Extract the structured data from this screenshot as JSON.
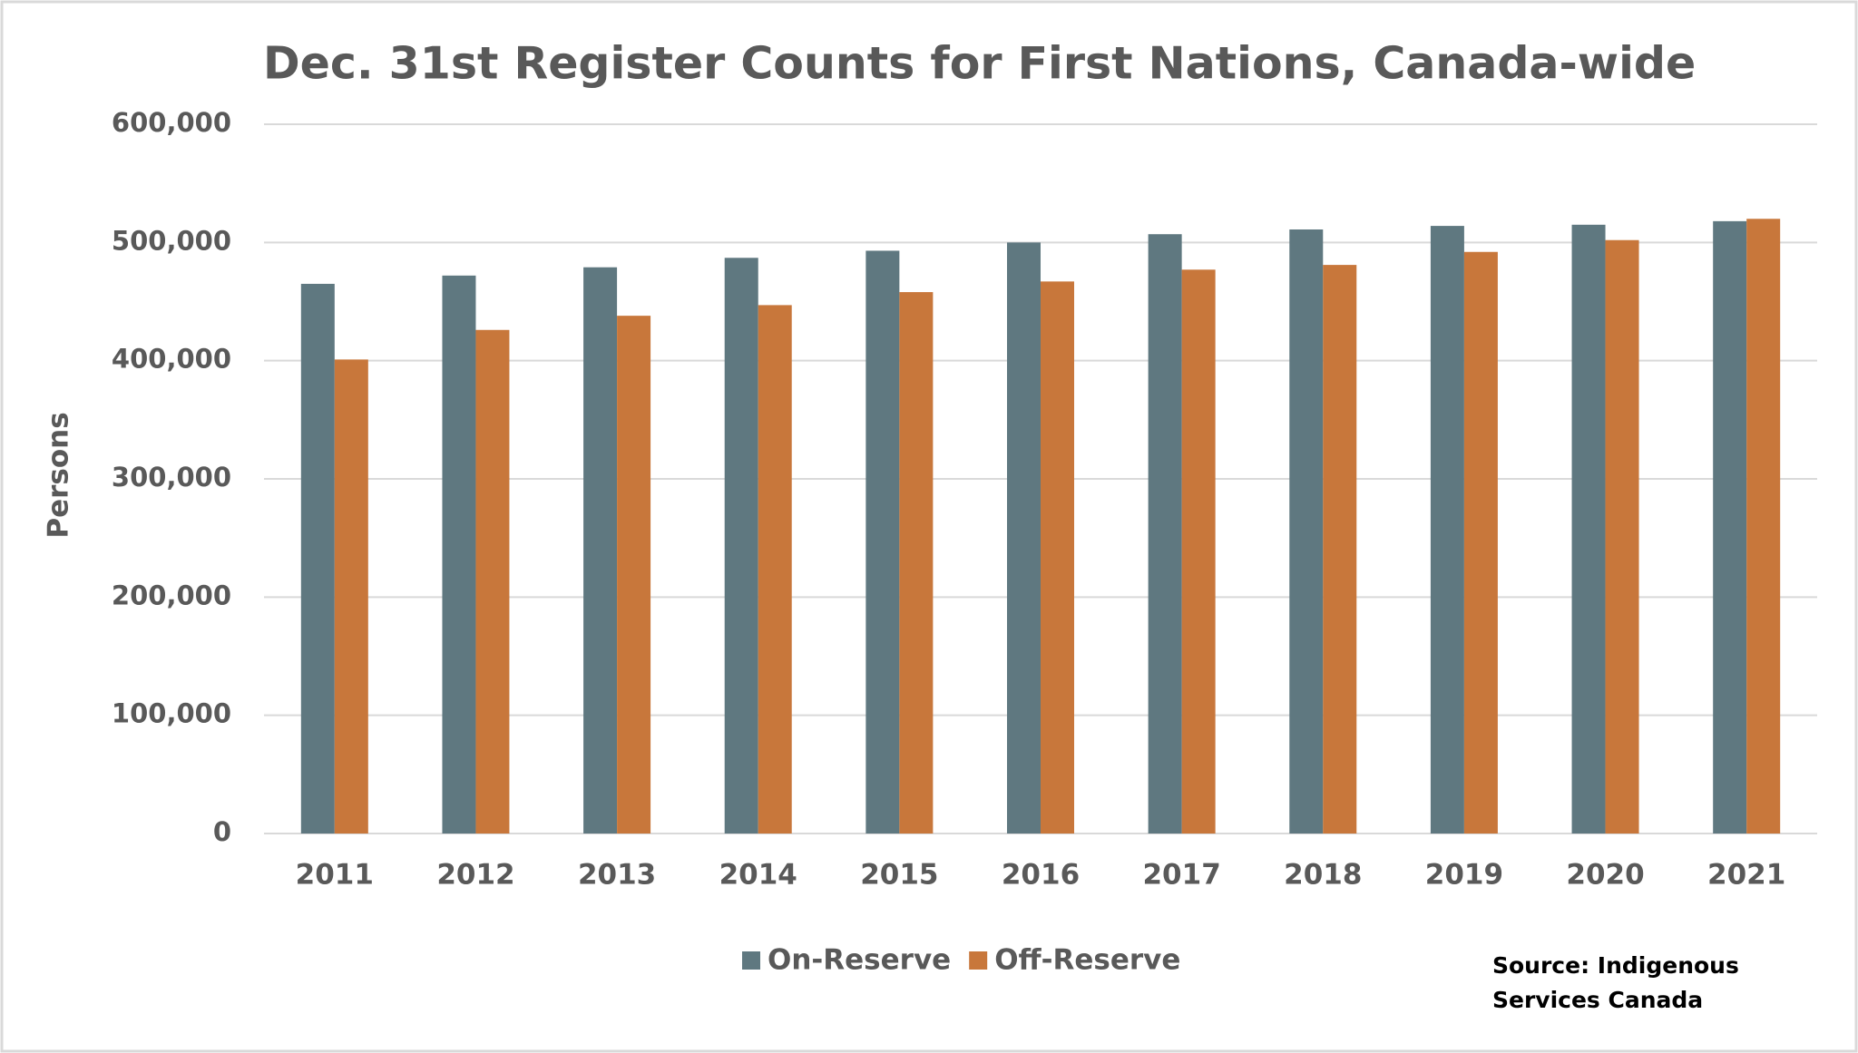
{
  "chart_data": {
    "type": "bar",
    "title": "Dec. 31st Register Counts for First Nations, Canada-wide",
    "y_label": "Persons",
    "source": "Source: Indigenous Services Canada",
    "categories": [
      "2011",
      "2012",
      "2013",
      "2014",
      "2015",
      "2016",
      "2017",
      "2018",
      "2019",
      "2020",
      "2021"
    ],
    "series": [
      {
        "name": "On-Reserve",
        "color": "#5f7880",
        "values": [
          465000,
          472000,
          479000,
          487000,
          493000,
          500000,
          507000,
          511000,
          514000,
          515000,
          518000
        ]
      },
      {
        "name": "Off-Reserve",
        "color": "#c8773b",
        "values": [
          401000,
          426000,
          438000,
          447000,
          458000,
          467000,
          477000,
          481000,
          492000,
          502000,
          520000
        ]
      }
    ],
    "ylim": [
      0,
      600000
    ],
    "yticks": [
      0,
      {
        "value": 100000,
        "label": "100,000"
      },
      {
        "value": 200000,
        "label": "200,000"
      },
      {
        "value": 300000,
        "label": "300,000"
      },
      {
        "value": 400000,
        "label": "400,000"
      },
      {
        "value": 500000,
        "label": "500,000"
      },
      {
        "value": 600000,
        "label": "600,000"
      }
    ],
    "grid": true,
    "legend": "bottom"
  }
}
